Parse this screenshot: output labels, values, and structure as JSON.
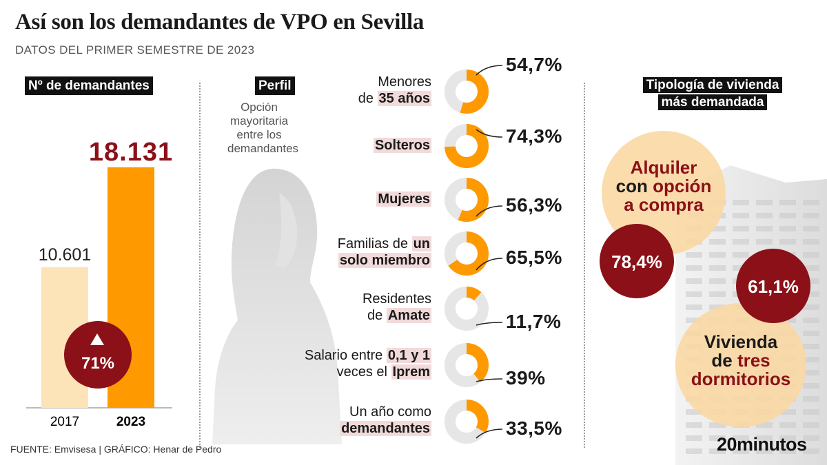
{
  "header": {
    "title": "Así son los demandantes de VPO en Sevilla",
    "subtitle": "DATOS DEL PRIMER SEMESTRE DE 2023"
  },
  "demandantes": {
    "header": "Nº de demandantes",
    "growth": "71%",
    "growth_icon": "up-triangle-icon"
  },
  "perfil": {
    "header": "Perfil",
    "subtitle_lines": [
      "Opción",
      "mayoritaria",
      "entre los",
      "demandantes"
    ],
    "items": [
      {
        "label_lines": [
          [
            {
              "t": "Menores",
              "h": false
            }
          ],
          [
            {
              "t": "de ",
              "h": false
            },
            {
              "t": "35 años",
              "h": true
            }
          ]
        ],
        "value_text": "54,7%",
        "pct": 54.7
      },
      {
        "label_lines": [
          [
            {
              "t": "Solteros",
              "h": true
            }
          ]
        ],
        "value_text": "74,3%",
        "pct": 74.3
      },
      {
        "label_lines": [
          [
            {
              "t": "Mujeres",
              "h": true
            }
          ]
        ],
        "value_text": "56,3%",
        "pct": 56.3
      },
      {
        "label_lines": [
          [
            {
              "t": "Familias de ",
              "h": false
            },
            {
              "t": "un",
              "h": true
            }
          ],
          [
            {
              "t": "solo miembro",
              "h": true
            }
          ]
        ],
        "value_text": "65,5%",
        "pct": 65.5
      },
      {
        "label_lines": [
          [
            {
              "t": "Residentes",
              "h": false
            }
          ],
          [
            {
              "t": "de ",
              "h": false
            },
            {
              "t": "Amate",
              "h": true
            }
          ]
        ],
        "value_text": "11,7%",
        "pct": 11.7
      },
      {
        "label_lines": [
          [
            {
              "t": "Salario entre ",
              "h": false
            },
            {
              "t": "0,1 y 1",
              "h": true
            }
          ],
          [
            {
              "t": "veces el ",
              "h": false
            },
            {
              "t": "Iprem",
              "h": true
            }
          ]
        ],
        "value_text": "39%",
        "pct": 39
      },
      {
        "label_lines": [
          [
            {
              "t": "Un año como",
              "h": false
            }
          ],
          [
            {
              "t": "demandantes",
              "h": true
            }
          ]
        ],
        "value_text": "33,5%",
        "pct": 33.5
      }
    ]
  },
  "tipologia": {
    "header_lines": [
      "Tipología de vivienda",
      "más demandada"
    ],
    "item1_lines": [
      [
        {
          "t": "Alquiler",
          "r": true
        }
      ],
      [
        {
          "t": "con ",
          "r": false
        },
        {
          "t": "opción",
          "r": true
        }
      ],
      [
        {
          "t": "a compra",
          "r": true
        }
      ]
    ],
    "item1_value": "78,4%",
    "item2_lines": [
      [
        {
          "t": "Vivienda",
          "r": false
        }
      ],
      [
        {
          "t": "de ",
          "r": false
        },
        {
          "t": "tres",
          "r": true
        }
      ],
      [
        {
          "t": "dormitorios",
          "r": true
        }
      ]
    ],
    "item2_value": "61,1%"
  },
  "footer": {
    "source": "FUENTE: Emvisesa  |  GRÁFICO: Henar de Pedro",
    "brand": "20minutos"
  },
  "colors": {
    "orange": "#ff9900",
    "light_orange": "#fde4b8",
    "dark_red": "#8b1018",
    "grey_ring": "#e6e6e6",
    "highlight": "#f2dada"
  },
  "chart_data": [
    {
      "type": "bar",
      "title": "Nº de demandantes",
      "categories": [
        "2017",
        "2023"
      ],
      "values": [
        10601,
        18131
      ],
      "value_labels": [
        "10.601",
        "18.131"
      ],
      "ylim": [
        0,
        20000
      ]
    },
    {
      "type": "pie",
      "title": "Perfil",
      "categories": [
        "Menores de 35 años",
        "Solteros",
        "Mujeres",
        "Familias de un solo miembro",
        "Residentes de Amate",
        "Salario entre 0,1 y 1 veces el Iprem",
        "Un año como demandantes"
      ],
      "values": [
        54.7,
        74.3,
        56.3,
        65.5,
        11.7,
        39,
        33.5
      ]
    }
  ]
}
